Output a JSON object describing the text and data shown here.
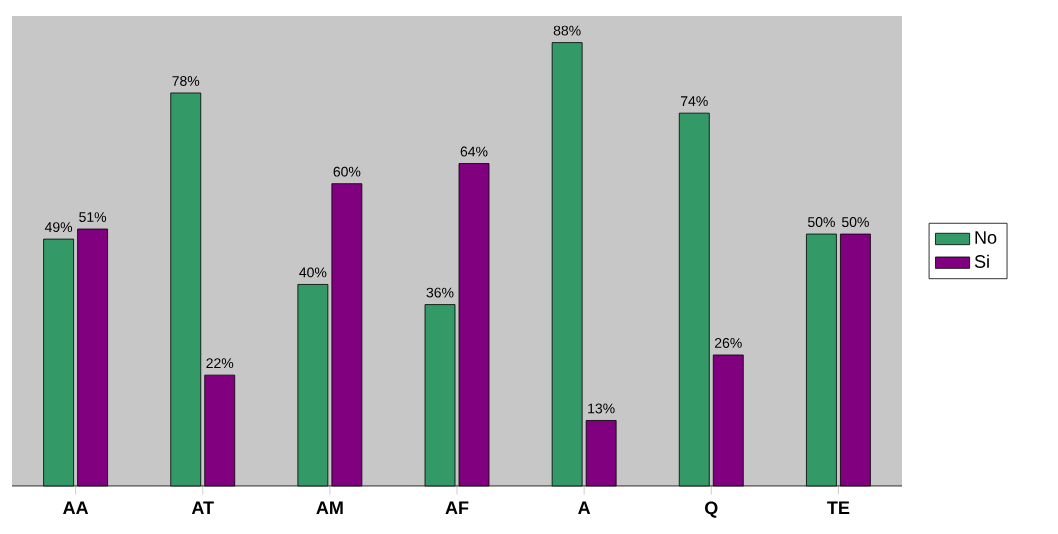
{
  "chart_data": {
    "type": "bar",
    "categories": [
      "AA",
      "AT",
      "AM",
      "AF",
      "A",
      "Q",
      "TE"
    ],
    "series": [
      {
        "name": "No",
        "color": "#339966",
        "values": [
          49,
          78,
          40,
          36,
          88,
          74,
          50
        ],
        "value_labels": [
          "49%",
          "78%",
          "40%",
          "36%",
          "88%",
          "74%",
          "50%"
        ]
      },
      {
        "name": "Si",
        "color": "#800080",
        "values": [
          51,
          22,
          60,
          64,
          13,
          26,
          50
        ],
        "value_labels": [
          "51%",
          "22%",
          "60%",
          "64%",
          "13%",
          "26%",
          "50%"
        ]
      }
    ],
    "legend": "right"
  }
}
